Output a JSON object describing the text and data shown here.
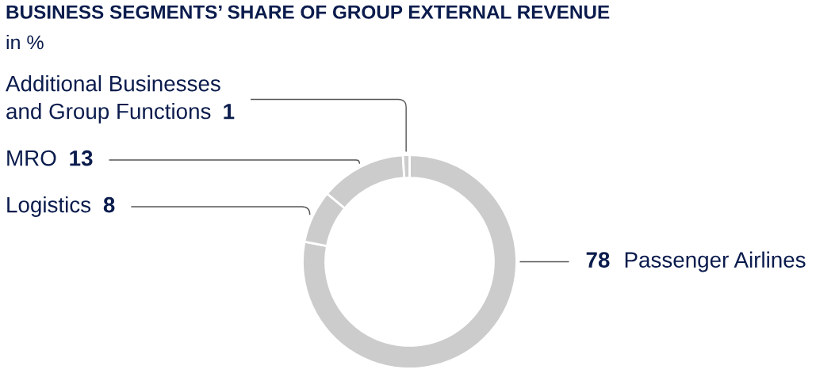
{
  "chart_data": {
    "type": "donut",
    "title": "BUSINESS SEGMENTS’ SHARE OF GROUP EXTERNAL REVENUE",
    "subtitle": "in %",
    "categories": [
      "Passenger Airlines",
      "Logistics",
      "MRO",
      "Additional Businesses and Group Functions"
    ],
    "values": [
      78,
      8,
      13,
      1
    ],
    "colors": [
      "#cccccc",
      "#cccccc",
      "#cccccc",
      "#cccccc"
    ],
    "data_labels": true
  }
}
